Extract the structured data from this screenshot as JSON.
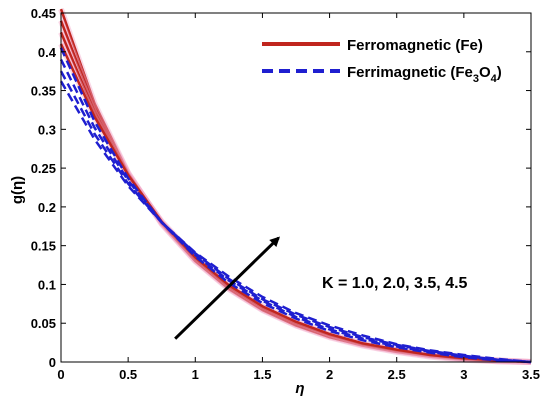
{
  "chart_data": {
    "type": "line",
    "title": "",
    "xlabel": "η",
    "ylabel": "g(η)",
    "xlim": [
      0,
      3.5
    ],
    "ylim": [
      0,
      0.45
    ],
    "x_ticks": [
      0,
      0.5,
      1,
      1.5,
      2,
      2.5,
      3,
      3.5
    ],
    "y_ticks": [
      0,
      0.05,
      0.1,
      0.15,
      0.2,
      0.25,
      0.3,
      0.35,
      0.4,
      0.45
    ],
    "x_tick_labels": [
      "0",
      "0.5",
      "1",
      "1.5",
      "2",
      "2.5",
      "3",
      "3.5"
    ],
    "y_tick_labels": [
      "0",
      "0.05",
      "0.1",
      "0.15",
      "0.2",
      "0.25",
      "0.3",
      "0.35",
      "0.4",
      "0.45"
    ],
    "grid": false,
    "legend_position": "top-right",
    "legend": [
      {
        "label_main": "Ferromagnetic (Fe)",
        "label_parts": [],
        "style": "solid",
        "color": "#c0251e"
      },
      {
        "label_main": "Ferrimagnetic (Fe",
        "label_parts": [
          "3",
          "O",
          "4",
          ")"
        ],
        "style": "dashed",
        "color": "#1f1fd0"
      }
    ],
    "annotation": {
      "text": "K = 1.0, 2.0, 3.5, 4.5",
      "arrow_from": [
        0.85,
        0.03
      ],
      "arrow_to": [
        1.62,
        0.16
      ]
    },
    "series": [
      {
        "group": "Fe",
        "style": "solid",
        "color": "#c0251e",
        "K": 1.0,
        "x": [
          0,
          0.25,
          0.5,
          0.75,
          1,
          1.25,
          1.5,
          1.75,
          2,
          2.25,
          2.5,
          2.75,
          3,
          3.25,
          3.5
        ],
        "y": [
          0.455,
          0.333,
          0.244,
          0.178,
          0.13,
          0.094,
          0.067,
          0.047,
          0.032,
          0.021,
          0.013,
          0.007,
          0.003,
          0.001,
          0.0
        ]
      },
      {
        "group": "Fe",
        "style": "solid",
        "color": "#c0251e",
        "K": 2.0,
        "x": [
          0,
          0.25,
          0.5,
          0.75,
          1,
          1.25,
          1.5,
          1.75,
          2,
          2.25,
          2.5,
          2.75,
          3,
          3.25,
          3.5
        ],
        "y": [
          0.44,
          0.328,
          0.243,
          0.179,
          0.131,
          0.095,
          0.068,
          0.048,
          0.033,
          0.022,
          0.014,
          0.008,
          0.004,
          0.001,
          0.0
        ]
      },
      {
        "group": "Fe",
        "style": "solid",
        "color": "#c0251e",
        "K": 3.5,
        "x": [
          0,
          0.25,
          0.5,
          0.75,
          1,
          1.25,
          1.5,
          1.75,
          2,
          2.25,
          2.5,
          2.75,
          3,
          3.25,
          3.5
        ],
        "y": [
          0.425,
          0.322,
          0.242,
          0.18,
          0.133,
          0.097,
          0.07,
          0.05,
          0.035,
          0.023,
          0.015,
          0.009,
          0.004,
          0.002,
          0.0
        ]
      },
      {
        "group": "Fe",
        "style": "solid",
        "color": "#c0251e",
        "K": 4.5,
        "x": [
          0,
          0.25,
          0.5,
          0.75,
          1,
          1.25,
          1.5,
          1.75,
          2,
          2.25,
          2.5,
          2.75,
          3,
          3.25,
          3.5
        ],
        "y": [
          0.41,
          0.316,
          0.241,
          0.181,
          0.135,
          0.099,
          0.072,
          0.052,
          0.036,
          0.024,
          0.016,
          0.009,
          0.005,
          0.002,
          0.0
        ]
      },
      {
        "group": "Fe3O4",
        "style": "dashed",
        "color": "#1f1fd0",
        "K": 1.0,
        "x": [
          0,
          0.25,
          0.5,
          0.75,
          1,
          1.25,
          1.5,
          1.75,
          2,
          2.25,
          2.5,
          2.75,
          3,
          3.25,
          3.5
        ],
        "y": [
          0.405,
          0.31,
          0.237,
          0.18,
          0.136,
          0.102,
          0.076,
          0.056,
          0.04,
          0.028,
          0.019,
          0.012,
          0.006,
          0.002,
          0.0
        ]
      },
      {
        "group": "Fe3O4",
        "style": "dashed",
        "color": "#1f1fd0",
        "K": 2.0,
        "x": [
          0,
          0.25,
          0.5,
          0.75,
          1,
          1.25,
          1.5,
          1.75,
          2,
          2.25,
          2.5,
          2.75,
          3,
          3.25,
          3.5
        ],
        "y": [
          0.39,
          0.302,
          0.234,
          0.18,
          0.138,
          0.105,
          0.079,
          0.058,
          0.042,
          0.03,
          0.02,
          0.013,
          0.007,
          0.003,
          0.0
        ]
      },
      {
        "group": "Fe3O4",
        "style": "dashed",
        "color": "#1f1fd0",
        "K": 3.5,
        "x": [
          0,
          0.25,
          0.5,
          0.75,
          1,
          1.25,
          1.5,
          1.75,
          2,
          2.25,
          2.5,
          2.75,
          3,
          3.25,
          3.5
        ],
        "y": [
          0.375,
          0.294,
          0.23,
          0.18,
          0.14,
          0.107,
          0.081,
          0.061,
          0.045,
          0.032,
          0.022,
          0.014,
          0.008,
          0.003,
          0.0
        ]
      },
      {
        "group": "Fe3O4",
        "style": "dashed",
        "color": "#1f1fd0",
        "K": 4.5,
        "x": [
          0,
          0.25,
          0.5,
          0.75,
          1,
          1.25,
          1.5,
          1.75,
          2,
          2.25,
          2.5,
          2.75,
          3,
          3.25,
          3.5
        ],
        "y": [
          0.362,
          0.287,
          0.227,
          0.18,
          0.141,
          0.11,
          0.084,
          0.063,
          0.047,
          0.034,
          0.023,
          0.015,
          0.009,
          0.004,
          0.0
        ]
      }
    ]
  }
}
